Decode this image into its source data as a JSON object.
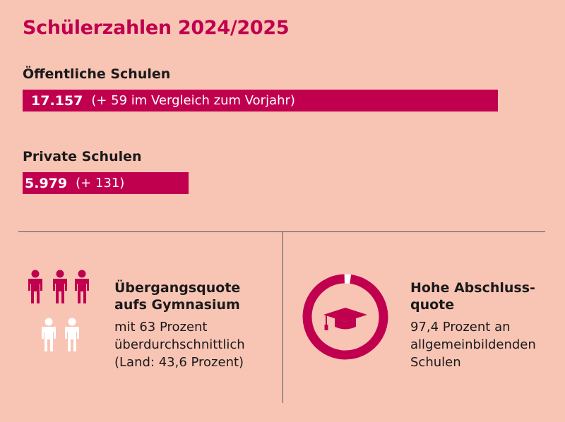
{
  "title": "Schülerzahlen 2024/2025",
  "chart_data": {
    "type": "bar",
    "categories": [
      "Öffentliche Schulen",
      "Private Schulen"
    ],
    "values": [
      17157,
      5979
    ],
    "value_labels": [
      "17.157",
      "5.979"
    ],
    "change_labels": [
      "(+ 59 im Vergleich zum Vorjahr)",
      "(+ 131)"
    ],
    "colors": {
      "bar": "#c0004f",
      "bar_text": "#ffffff"
    }
  },
  "transition": {
    "heading": [
      "Übergangsquote",
      "aufs Gymnasium"
    ],
    "text": [
      "mit 63 Prozent",
      "überdurchschnittlich",
      "(Land: 43,6 Prozent)"
    ],
    "icon": "people-icon",
    "highlighted_people": 3,
    "total_people": 5
  },
  "graduation": {
    "heading": [
      "Hohe Abschluss-",
      "quote"
    ],
    "text": [
      "97,4 Prozent an",
      "allgemeinbildenden",
      "Schulen"
    ],
    "icon": "graduation-cap-icon",
    "rate_percent": 97.4
  },
  "colors": {
    "accent": "#c0004f",
    "background": "#f8c4b4",
    "muted": "#ffffff"
  }
}
